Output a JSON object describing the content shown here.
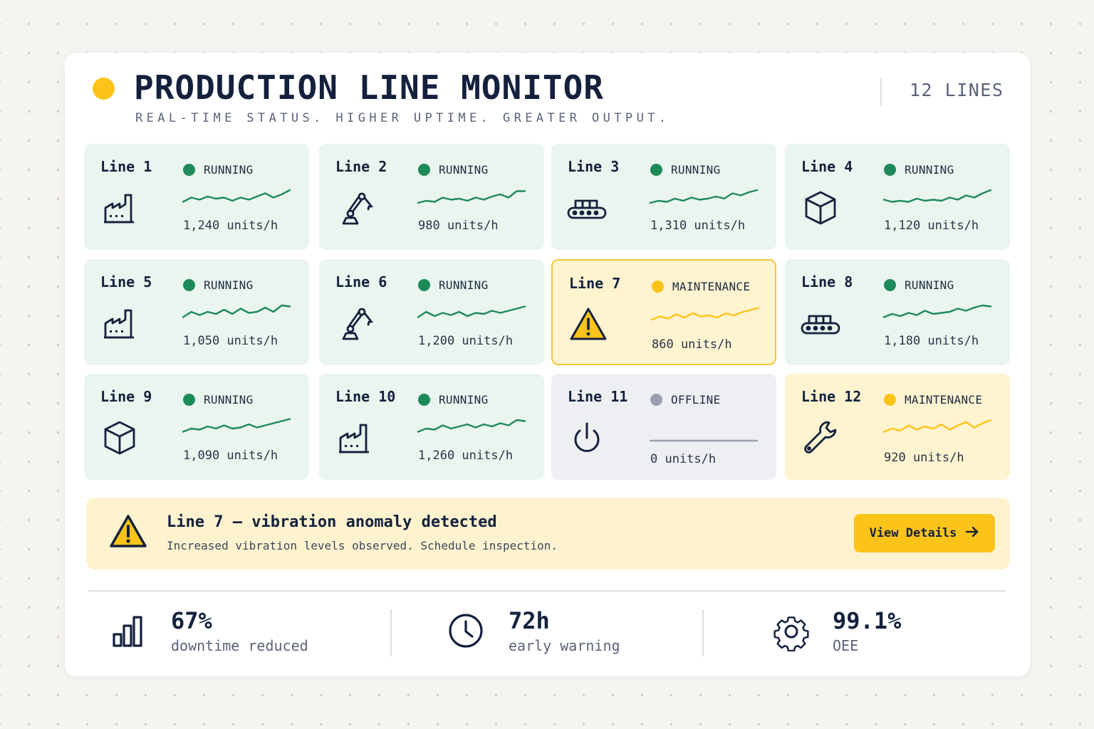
{
  "header": {
    "title": "PRODUCTION LINE MONITOR",
    "subtitle": "REAL-TIME STATUS. HIGHER UPTIME. GREATER OUTPUT.",
    "lines_count": "12 LINES"
  },
  "colors": {
    "running": "#1e8a5a",
    "maintenance": "#fcc419",
    "offline": "#9aa0ad",
    "text": "#14213d"
  },
  "lines": [
    {
      "name": "Line 1",
      "status": "RUNNING",
      "output": "1,240 units/h",
      "icon": "factory-icon",
      "trend": [
        0.35,
        0.55,
        0.45,
        0.6,
        0.5,
        0.55,
        0.4,
        0.55,
        0.45,
        0.6,
        0.75,
        0.55,
        0.7,
        0.9
      ]
    },
    {
      "name": "Line 2",
      "status": "RUNNING",
      "output": "980 units/h",
      "icon": "robot-arm-icon",
      "trend": [
        0.3,
        0.4,
        0.35,
        0.55,
        0.45,
        0.5,
        0.4,
        0.55,
        0.45,
        0.6,
        0.7,
        0.55,
        0.85,
        0.85
      ]
    },
    {
      "name": "Line 3",
      "status": "RUNNING",
      "output": "1,310 units/h",
      "icon": "conveyor-icon",
      "trend": [
        0.3,
        0.4,
        0.35,
        0.5,
        0.4,
        0.55,
        0.45,
        0.5,
        0.6,
        0.5,
        0.75,
        0.65,
        0.8,
        0.9
      ]
    },
    {
      "name": "Line 4",
      "status": "RUNNING",
      "output": "1,120 units/h",
      "icon": "box-icon",
      "trend": [
        0.45,
        0.35,
        0.4,
        0.35,
        0.5,
        0.4,
        0.45,
        0.4,
        0.55,
        0.45,
        0.65,
        0.55,
        0.75,
        0.9
      ]
    },
    {
      "name": "Line 5",
      "status": "RUNNING",
      "output": "1,050 units/h",
      "icon": "factory-icon",
      "trend": [
        0.35,
        0.6,
        0.45,
        0.6,
        0.5,
        0.7,
        0.5,
        0.75,
        0.55,
        0.6,
        0.8,
        0.6,
        0.9,
        0.85
      ]
    },
    {
      "name": "Line 6",
      "status": "RUNNING",
      "output": "1,200 units/h",
      "icon": "robot-arm-icon",
      "trend": [
        0.35,
        0.6,
        0.4,
        0.55,
        0.45,
        0.6,
        0.4,
        0.55,
        0.5,
        0.65,
        0.55,
        0.65,
        0.75,
        0.85
      ]
    },
    {
      "name": "Line 7",
      "status": "MAINTENANCE",
      "output": "860 units/h",
      "icon": "warning-icon",
      "trend": [
        0.3,
        0.45,
        0.35,
        0.55,
        0.4,
        0.6,
        0.45,
        0.5,
        0.4,
        0.6,
        0.5,
        0.65,
        0.75,
        0.85
      ]
    },
    {
      "name": "Line 8",
      "status": "RUNNING",
      "output": "1,180 units/h",
      "icon": "conveyor-icon",
      "trend": [
        0.35,
        0.5,
        0.4,
        0.55,
        0.45,
        0.65,
        0.5,
        0.55,
        0.6,
        0.75,
        0.65,
        0.8,
        0.9,
        0.85
      ]
    },
    {
      "name": "Line 9",
      "status": "RUNNING",
      "output": "1,090 units/h",
      "icon": "box-icon",
      "trend": [
        0.35,
        0.5,
        0.45,
        0.6,
        0.5,
        0.65,
        0.5,
        0.55,
        0.7,
        0.55,
        0.65,
        0.75,
        0.85,
        0.95
      ]
    },
    {
      "name": "Line 10",
      "status": "RUNNING",
      "output": "1,260 units/h",
      "icon": "factory-icon",
      "trend": [
        0.35,
        0.5,
        0.45,
        0.65,
        0.5,
        0.6,
        0.7,
        0.55,
        0.7,
        0.6,
        0.75,
        0.65,
        0.9,
        0.85
      ]
    },
    {
      "name": "Line 11",
      "status": "OFFLINE",
      "output": "0 units/h",
      "icon": "power-icon",
      "trend": [
        0,
        0,
        0,
        0,
        0,
        0,
        0,
        0,
        0,
        0,
        0,
        0,
        0,
        0
      ]
    },
    {
      "name": "Line 12",
      "status": "MAINTENANCE",
      "output": "920 units/h",
      "icon": "wrench-icon",
      "trend": [
        0.35,
        0.5,
        0.4,
        0.65,
        0.45,
        0.6,
        0.5,
        0.7,
        0.45,
        0.65,
        0.8,
        0.55,
        0.75,
        0.9
      ]
    }
  ],
  "alert": {
    "title": "Line 7 — vibration anomaly detected",
    "description": "Increased vibration levels observed. Schedule inspection.",
    "button_label": "View Details",
    "button_icon": "arrow-right-icon"
  },
  "stats": [
    {
      "value": "67%",
      "label": "downtime reduced",
      "icon": "bar-chart-icon"
    },
    {
      "value": "72h",
      "label": "early warning",
      "icon": "clock-icon"
    },
    {
      "value": "99.1%",
      "label": "OEE",
      "icon": "gear-icon"
    }
  ]
}
